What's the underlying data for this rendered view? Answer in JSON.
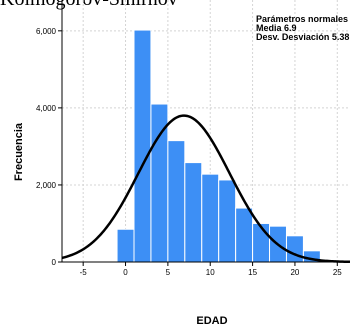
{
  "heading": "Kolmogorov-Smirnov",
  "chart_data": {
    "type": "bar",
    "subtype": "histogram",
    "xlabel": "EDAD",
    "ylabel": "Frecuencia",
    "xlim": [
      -7.5,
      26.5
    ],
    "ylim": [
      0,
      6800
    ],
    "x_ticks": [
      -5,
      0,
      5,
      10,
      15,
      20,
      25
    ],
    "y_ticks": [
      0,
      2000,
      4000,
      6000
    ],
    "y_tick_labels": [
      "0",
      "2,000",
      "4,000",
      "6,000"
    ],
    "bin_width": 2,
    "bins": [
      {
        "start": -1,
        "end": 1,
        "value": 850
      },
      {
        "start": 1,
        "end": 3,
        "value": 6020
      },
      {
        "start": 3,
        "end": 5,
        "value": 4100
      },
      {
        "start": 5,
        "end": 7,
        "value": 3150
      },
      {
        "start": 7,
        "end": 9,
        "value": 2580
      },
      {
        "start": 9,
        "end": 11,
        "value": 2280
      },
      {
        "start": 11,
        "end": 13,
        "value": 2130
      },
      {
        "start": 13,
        "end": 15,
        "value": 1400
      },
      {
        "start": 15,
        "end": 17,
        "value": 1000
      },
      {
        "start": 17,
        "end": 19,
        "value": 930
      },
      {
        "start": 19,
        "end": 21,
        "value": 680
      },
      {
        "start": 21,
        "end": 23,
        "value": 290
      }
    ],
    "normal_curve": {
      "mean": 6.9,
      "sd": 5.38,
      "peak": 3800
    },
    "annotation": [
      "Parámetros normales",
      "Media 6.9",
      "Desv. Desviación 5.38"
    ],
    "bar_color": "#3d8ff5",
    "curve_color": "#000000",
    "grid": true,
    "grid_color": "#d4d4d4"
  }
}
